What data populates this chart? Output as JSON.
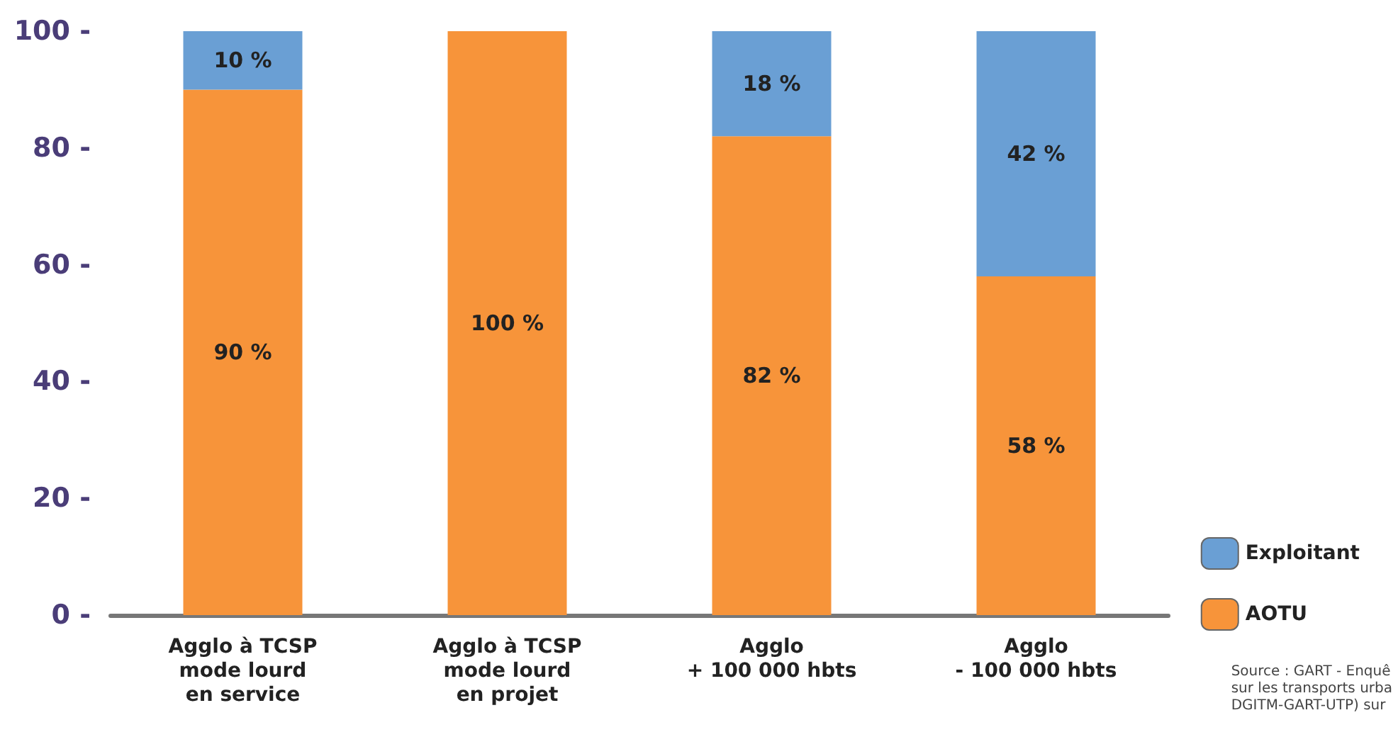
{
  "chart_data": {
    "type": "bar",
    "stacked": true,
    "categories": [
      "Agglo à TCSP\nmode lourd\nen service",
      "Agglo à TCSP\nmode lourd\nen projet",
      "Agglo\n+ 100 000 hbts",
      "Agglo\n- 100 000 hbts"
    ],
    "series": [
      {
        "name": "AOTU",
        "color": "#f7943a",
        "values": [
          90,
          100,
          82,
          58
        ],
        "value_labels": [
          "90 %",
          "100 %",
          "82 %",
          "58 %"
        ]
      },
      {
        "name": "Exploitant",
        "color": "#6a9fd4",
        "values": [
          10,
          0,
          18,
          42
        ],
        "value_labels": [
          "10 %",
          null,
          "18 %",
          "42 %"
        ]
      }
    ],
    "ylim": [
      0,
      100
    ],
    "yticks": [
      {
        "value": 0,
        "label": "0 -"
      },
      {
        "value": 20,
        "label": "20 -"
      },
      {
        "value": 40,
        "label": "40 -"
      },
      {
        "value": 60,
        "label": "60 -"
      },
      {
        "value": 80,
        "label": "80 -"
      },
      {
        "value": 100,
        "label": "100 -"
      }
    ],
    "grid": false,
    "legend": "bottom right",
    "annotations": [
      "Source : GART - Enquê\nsur les transports urba\nDGITM-GART-UTP) sur"
    ]
  }
}
